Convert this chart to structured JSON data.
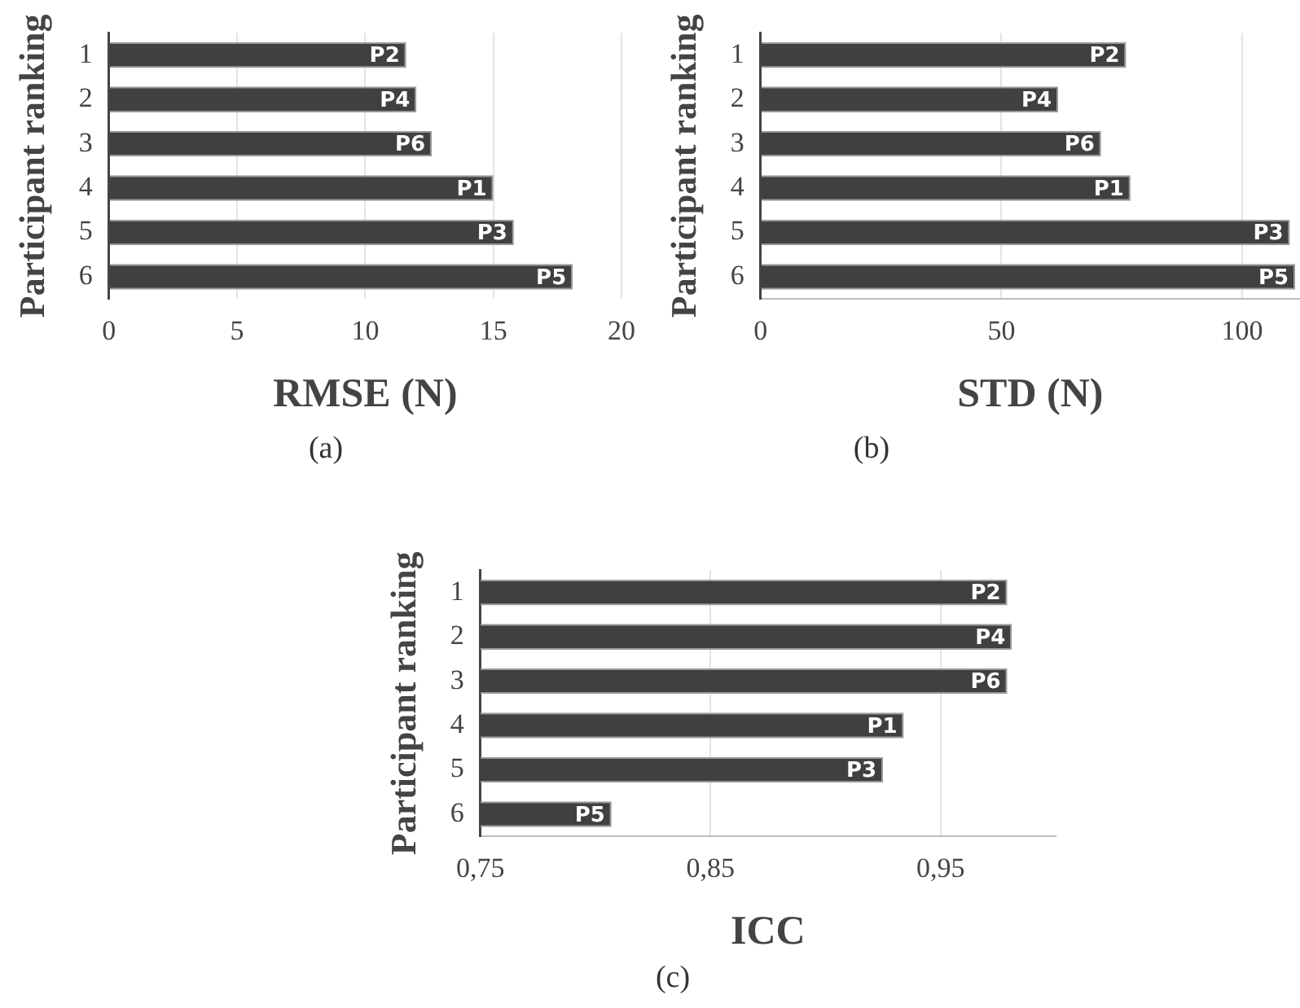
{
  "chart_data": [
    {
      "type": "bar",
      "orientation": "horizontal",
      "categories": [
        "1",
        "2",
        "3",
        "4",
        "5",
        "6"
      ],
      "values": [
        11.6,
        12.0,
        12.6,
        15.0,
        15.8,
        18.1
      ],
      "value_labels": [
        "P2",
        "P4",
        "P6",
        "P1",
        "P3",
        "P5"
      ],
      "color": "#404040",
      "xlim": [
        0,
        20
      ],
      "xticks": [
        0,
        5,
        10,
        15,
        20
      ],
      "xlabel": "RMSE (N)",
      "ylabel": "Participant ranking",
      "grid": "x",
      "annotations": [
        "(a)"
      ]
    },
    {
      "type": "bar",
      "orientation": "horizontal",
      "categories": [
        "1",
        "2",
        "3",
        "4",
        "5",
        "6"
      ],
      "values": [
        75.9,
        61.8,
        70.7,
        76.8,
        109.9,
        111
      ],
      "value_labels": [
        "P2",
        "P4",
        "P6",
        "P1",
        "P3",
        "P5"
      ],
      "color": "#404040",
      "xlim": [
        0,
        112
      ],
      "xticks": [
        0,
        50,
        100
      ],
      "xlabel": "STD (N)",
      "ylabel": "Participant ranking",
      "grid": "x",
      "annotations": [
        "(b)"
      ]
    },
    {
      "type": "bar",
      "orientation": "horizontal",
      "categories": [
        "1",
        "2",
        "3",
        "4",
        "5",
        "6"
      ],
      "values": [
        0.979,
        0.981,
        0.979,
        0.934,
        0.925,
        0.807
      ],
      "value_labels": [
        "P2",
        "P4",
        "P6",
        "P1",
        "P3",
        "P5"
      ],
      "color": "#404040",
      "xlim": [
        0.75,
        1.0
      ],
      "xticks": [
        {
          "value": 0.75,
          "label": "0,75"
        },
        {
          "value": 0.85,
          "label": "0,85"
        },
        {
          "value": 0.95,
          "label": "0,95"
        }
      ],
      "xlabel": "ICC",
      "ylabel": "Participant ranking",
      "grid": "x",
      "annotations": [
        "(c)"
      ]
    }
  ]
}
